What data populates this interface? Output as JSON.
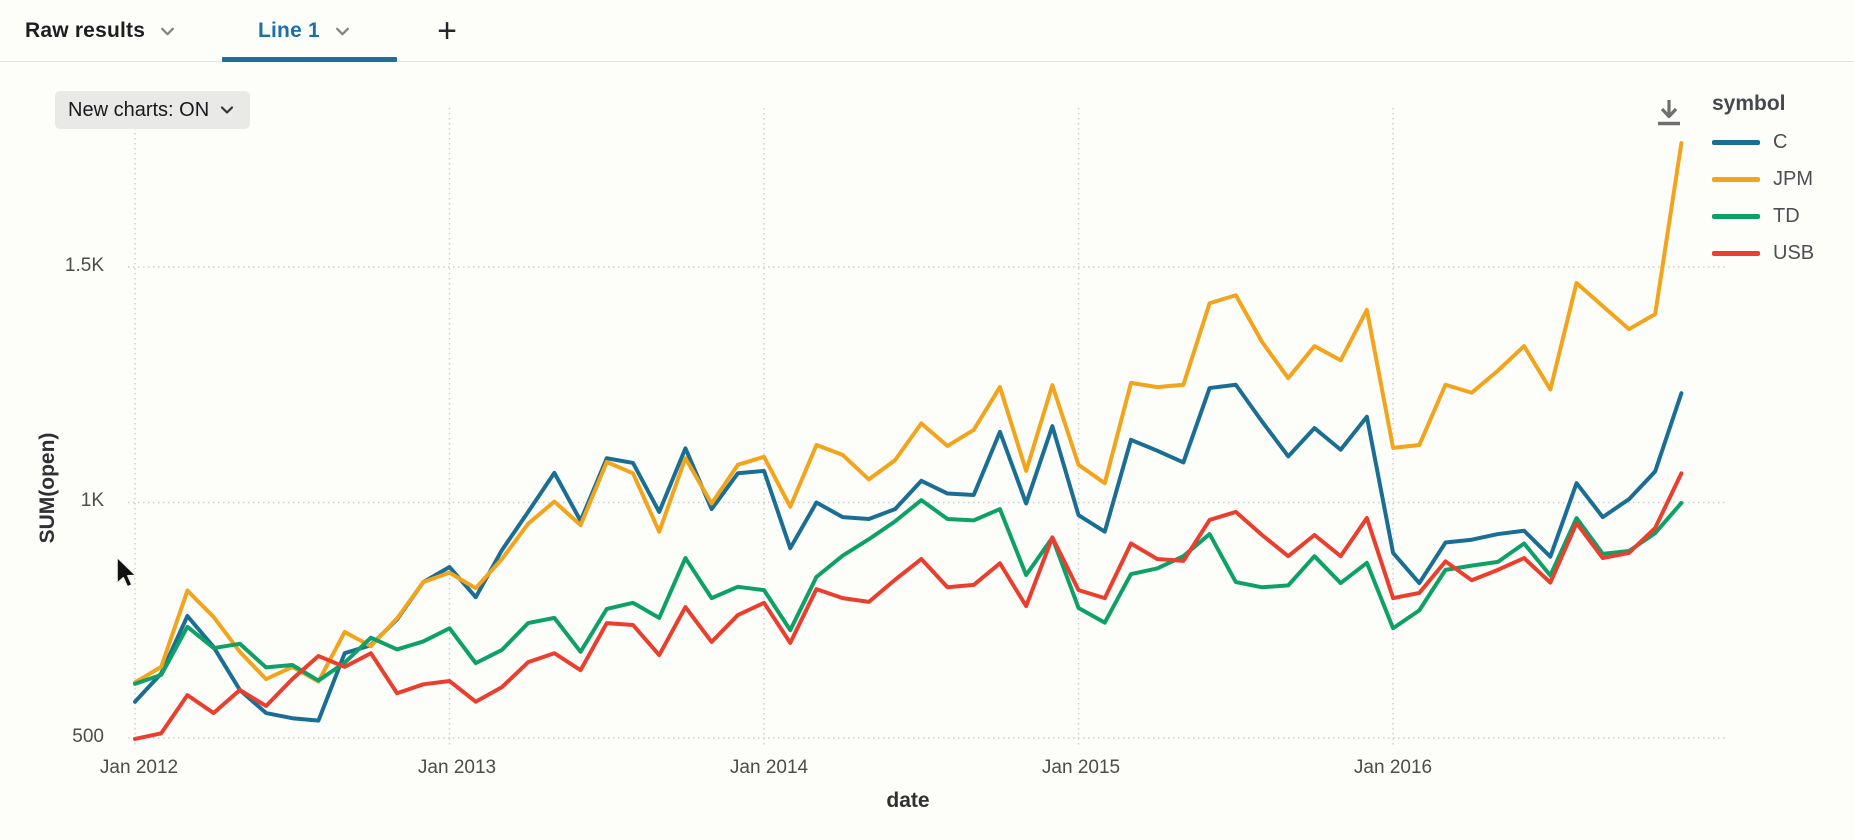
{
  "header": {
    "tabs": [
      {
        "label": "Raw results",
        "active": false
      },
      {
        "label": "Line 1",
        "active": true
      }
    ],
    "add_tab_label": "+"
  },
  "toolbar": {
    "new_charts_label": "New charts: ON"
  },
  "legend": {
    "title": "symbol",
    "items": [
      {
        "label": "C",
        "color": "#1a6e94"
      },
      {
        "label": "JPM",
        "color": "#f2a41c"
      },
      {
        "label": "TD",
        "color": "#0ea167"
      },
      {
        "label": "USB",
        "color": "#ea3f2e"
      }
    ]
  },
  "colors": {
    "accent_blue": "#1e6fa7",
    "tab_indicator": "#1d6f9e",
    "grid": "#ccccdd",
    "icon_gray": "#6f6f6f"
  },
  "chart_data": {
    "type": "line",
    "title": "",
    "xlabel": "date",
    "ylabel": "SUM(open)",
    "legend_title": "symbol",
    "legend_position": "top-right",
    "grid": "dotted",
    "x_ticks": [
      "Jan 2012",
      "Jan 2013",
      "Jan 2014",
      "Jan 2015",
      "Jan 2016"
    ],
    "x_tick_month_indices": [
      0,
      12,
      24,
      36,
      48
    ],
    "y_ticks": [
      "500",
      "1K",
      "1.5K"
    ],
    "y_tick_values": [
      500,
      1000,
      1500
    ],
    "ylim": [
      450,
      1850
    ],
    "x": [
      "2012-01",
      "2012-02",
      "2012-03",
      "2012-04",
      "2012-05",
      "2012-06",
      "2012-07",
      "2012-08",
      "2012-09",
      "2012-10",
      "2012-11",
      "2012-12",
      "2013-01",
      "2013-02",
      "2013-03",
      "2013-04",
      "2013-05",
      "2013-06",
      "2013-07",
      "2013-08",
      "2013-09",
      "2013-10",
      "2013-11",
      "2013-12",
      "2014-01",
      "2014-02",
      "2014-03",
      "2014-04",
      "2014-05",
      "2014-06",
      "2014-07",
      "2014-08",
      "2014-09",
      "2014-10",
      "2014-11",
      "2014-12",
      "2015-01",
      "2015-02",
      "2015-03",
      "2015-04",
      "2015-05",
      "2015-06",
      "2015-07",
      "2015-08",
      "2015-09",
      "2015-10",
      "2015-11",
      "2015-12",
      "2016-01",
      "2016-02",
      "2016-03",
      "2016-04",
      "2016-05",
      "2016-06",
      "2016-07",
      "2016-08",
      "2016-09",
      "2016-10",
      "2016-11",
      "2016-12"
    ],
    "series": [
      {
        "name": "C",
        "color": "#1a6e94",
        "values": [
          577,
          637,
          759,
          693,
          602,
          553,
          542,
          537,
          680,
          697,
          752,
          831,
          863,
          799,
          899,
          980,
          1063,
          961,
          1094,
          1084,
          980,
          1115,
          986,
          1062,
          1067,
          903,
          1000,
          969,
          965,
          986,
          1046,
          1019,
          1016,
          1150,
          998,
          1162,
          973,
          938,
          1133,
          1110,
          1085,
          1243,
          1250,
          1172,
          1098,
          1158,
          1112,
          1182,
          893,
          829,
          915,
          921,
          933,
          940,
          885,
          1041,
          969,
          1007,
          1066,
          1232
        ]
      },
      {
        "name": "JPM",
        "color": "#f2a41c",
        "values": [
          618,
          651,
          813,
          757,
          683,
          625,
          651,
          620,
          725,
          695,
          754,
          831,
          851,
          818,
          880,
          955,
          1002,
          952,
          1086,
          1062,
          938,
          1094,
          998,
          1080,
          1097,
          991,
          1122,
          1101,
          1049,
          1090,
          1168,
          1120,
          1154,
          1245,
          1067,
          1249,
          1080,
          1041,
          1254,
          1245,
          1250,
          1423,
          1440,
          1341,
          1264,
          1332,
          1302,
          1409,
          1116,
          1122,
          1250,
          1233,
          1280,
          1332,
          1240,
          1466,
          1417,
          1368,
          1400,
          1763
        ]
      },
      {
        "name": "TD",
        "color": "#0ea167",
        "values": [
          615,
          634,
          736,
          691,
          700,
          650,
          655,
          622,
          660,
          713,
          688,
          705,
          733,
          659,
          687,
          744,
          755,
          683,
          774,
          787,
          755,
          882,
          797,
          821,
          814,
          729,
          842,
          887,
          922,
          960,
          1005,
          965,
          962,
          986,
          846,
          925,
          776,
          745,
          848,
          860,
          886,
          933,
          831,
          820,
          824,
          886,
          829,
          872,
          733,
          771,
          857,
          866,
          874,
          913,
          845,
          967,
          891,
          897,
          935,
          999
        ]
      },
      {
        "name": "USB",
        "color": "#ea3f2e",
        "values": [
          498,
          510,
          591,
          553,
          602,
          568,
          625,
          674,
          651,
          680,
          595,
          614,
          621,
          577,
          608,
          661,
          680,
          644,
          744,
          740,
          676,
          778,
          704,
          761,
          787,
          702,
          816,
          797,
          789,
          836,
          880,
          820,
          825,
          871,
          780,
          926,
          814,
          797,
          913,
          880,
          876,
          963,
          980,
          931,
          886,
          931,
          886,
          967,
          797,
          808,
          875,
          835,
          857,
          882,
          830,
          956,
          882,
          893,
          946,
          1062
        ]
      }
    ]
  }
}
